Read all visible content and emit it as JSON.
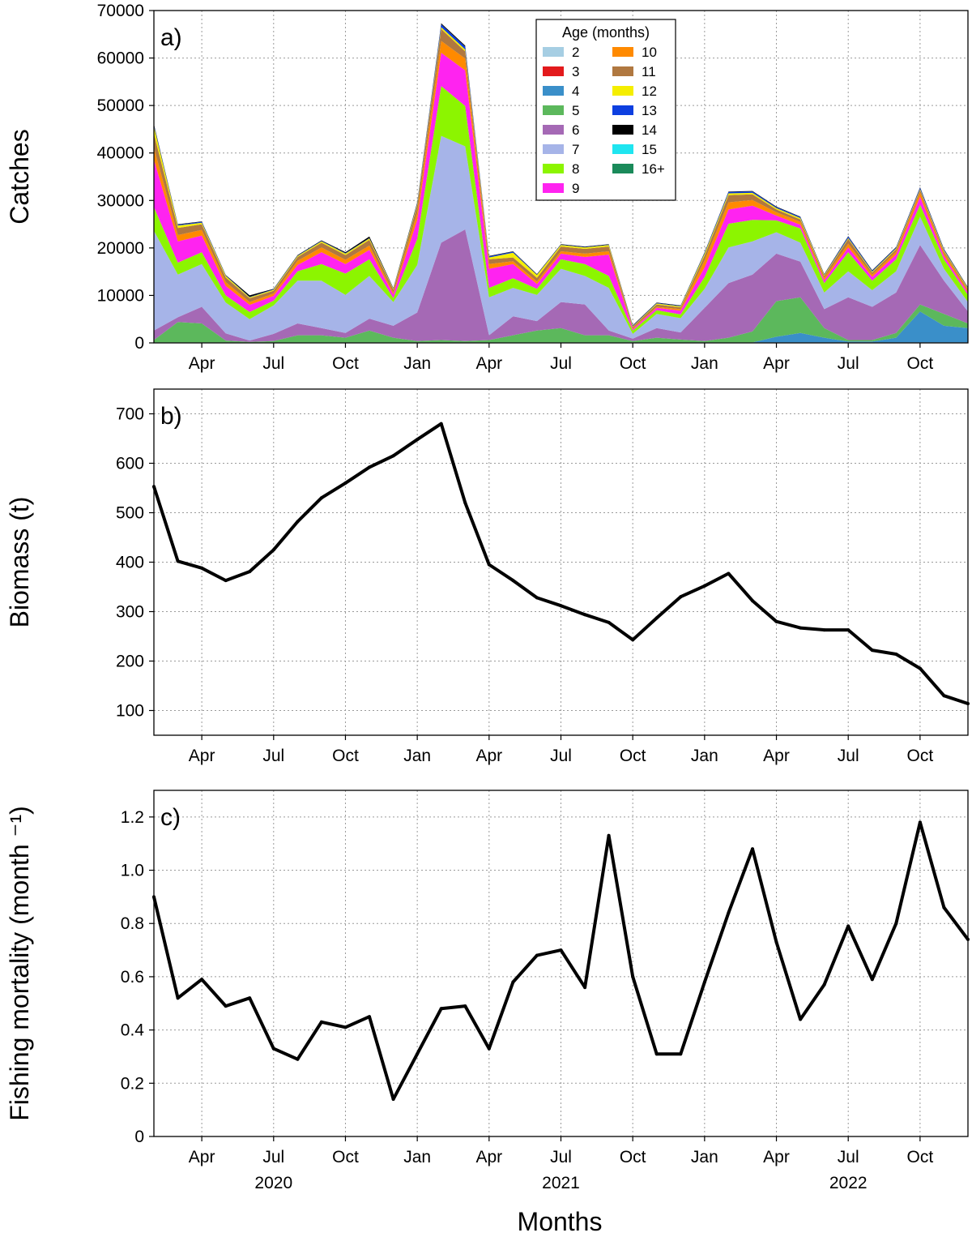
{
  "colors": {
    "ages": [
      "#a6cee3",
      "#e31a1c",
      "#3a8fc9",
      "#5cb85c",
      "#a569b5",
      "#a6b4e8",
      "#8cf500",
      "#ff23f0",
      "#ff8a00",
      "#b07840",
      "#f5ee00",
      "#0d3fe0",
      "#000000",
      "#1fe5f0",
      "#1a8a5a"
    ],
    "line": "#000000"
  },
  "x_labels": {
    "tick_labels": [
      "Apr",
      "Jul",
      "Oct",
      "Jan",
      "Apr",
      "Jul",
      "Oct",
      "Jan",
      "Apr",
      "Jul",
      "Oct"
    ],
    "years": [
      "2020",
      "2021",
      "2022"
    ],
    "xlabel": "Months"
  },
  "chart_data": [
    {
      "type": "area",
      "panel_label": "a)",
      "title": "",
      "xlabel": "",
      "ylabel": "Catches",
      "ylim": [
        0,
        70000
      ],
      "yticks": [
        "0",
        "10000",
        "20000",
        "30000",
        "40000",
        "50000",
        "60000",
        "70000"
      ],
      "legend_title": "Age (months)",
      "legend_position": "top-center",
      "x": [
        "2020-02",
        "2020-03",
        "2020-04",
        "2020-05",
        "2020-06",
        "2020-07",
        "2020-08",
        "2020-09",
        "2020-10",
        "2020-11",
        "2020-12",
        "2021-01",
        "2021-02",
        "2021-03",
        "2021-04",
        "2021-05",
        "2021-06",
        "2021-07",
        "2021-08",
        "2021-09",
        "2021-10",
        "2021-11",
        "2021-12",
        "2022-01",
        "2022-02",
        "2022-03",
        "2022-04",
        "2022-05",
        "2022-06",
        "2022-07",
        "2022-08",
        "2022-09",
        "2022-10",
        "2022-11",
        "2022-12"
      ],
      "stacked": true,
      "series": [
        {
          "name": "2",
          "values": [
            100,
            100,
            100,
            100,
            100,
            100,
            100,
            100,
            100,
            100,
            100,
            100,
            100,
            100,
            100,
            100,
            100,
            100,
            100,
            100,
            100,
            100,
            100,
            100,
            100,
            100,
            100,
            100,
            100,
            100,
            100,
            100,
            100,
            100,
            100
          ]
        },
        {
          "name": "3",
          "values": [
            0,
            0,
            0,
            0,
            0,
            0,
            0,
            0,
            0,
            0,
            0,
            0,
            0,
            0,
            0,
            0,
            0,
            0,
            0,
            0,
            0,
            0,
            0,
            0,
            0,
            0,
            0,
            0,
            0,
            0,
            0,
            0,
            0,
            0,
            0
          ]
        },
        {
          "name": "4",
          "values": [
            0,
            0,
            0,
            0,
            0,
            0,
            0,
            0,
            0,
            0,
            0,
            0,
            0,
            0,
            0,
            0,
            0,
            0,
            0,
            0,
            0,
            0,
            0,
            0,
            0,
            0,
            1200,
            2000,
            1000,
            200,
            200,
            1000,
            6500,
            3500,
            3000
          ]
        },
        {
          "name": "5",
          "values": [
            500,
            4300,
            4000,
            400,
            100,
            300,
            1500,
            1500,
            1000,
            2500,
            1000,
            300,
            500,
            300,
            500,
            1500,
            2500,
            3000,
            1500,
            1500,
            300,
            1000,
            600,
            300,
            1000,
            2300,
            7500,
            7500,
            2000,
            300,
            300,
            1000,
            1500,
            2500,
            1000
          ]
        },
        {
          "name": "6",
          "values": [
            2000,
            1000,
            3500,
            1500,
            300,
            1500,
            2500,
            1500,
            1000,
            2500,
            2500,
            6000,
            20500,
            23500,
            1000,
            4000,
            2000,
            5500,
            6500,
            1000,
            500,
            2000,
            1500,
            7000,
            11500,
            12000,
            10000,
            7500,
            4000,
            9000,
            7000,
            8500,
            12500,
            7000,
            2500
          ]
        },
        {
          "name": "7",
          "values": [
            21000,
            9000,
            9000,
            6500,
            4500,
            6000,
            9000,
            10000,
            8000,
            9000,
            5000,
            10000,
            22500,
            17500,
            8000,
            6000,
            5500,
            7000,
            6000,
            9000,
            1000,
            3000,
            3000,
            4000,
            7500,
            7000,
            4500,
            4000,
            3500,
            5500,
            3500,
            4500,
            6000,
            2500,
            2000
          ]
        },
        {
          "name": "8",
          "values": [
            5000,
            2500,
            2500,
            1500,
            1500,
            1000,
            2000,
            3500,
            4500,
            3500,
            800,
            5500,
            10500,
            8500,
            2000,
            2000,
            1300,
            2000,
            2500,
            2500,
            700,
            800,
            800,
            2500,
            5000,
            4500,
            2500,
            3000,
            2000,
            4000,
            2000,
            2500,
            2500,
            2000,
            1500
          ]
        },
        {
          "name": "9",
          "values": [
            10000,
            4500,
            3500,
            2000,
            1500,
            1000,
            1300,
            2500,
            2000,
            2000,
            800,
            4000,
            7000,
            7500,
            4000,
            3000,
            1000,
            1200,
            1500,
            4500,
            300,
            500,
            800,
            2000,
            3000,
            3000,
            1000,
            800,
            600,
            1000,
            800,
            1000,
            1700,
            700,
            500
          ]
        },
        {
          "name": "10",
          "values": [
            2500,
            1300,
            1200,
            800,
            600,
            500,
            900,
            1000,
            900,
            900,
            400,
            1500,
            2500,
            2500,
            1000,
            600,
            500,
            500,
            700,
            700,
            200,
            200,
            300,
            1500,
            1500,
            1200,
            700,
            600,
            500,
            800,
            500,
            600,
            900,
            600,
            400
          ]
        },
        {
          "name": "11",
          "values": [
            3000,
            1500,
            1200,
            1000,
            800,
            600,
            800,
            1000,
            1000,
            1200,
            600,
            1500,
            2500,
            1500,
            1000,
            800,
            800,
            1000,
            1000,
            1000,
            300,
            500,
            400,
            1000,
            1500,
            1200,
            600,
            500,
            400,
            1000,
            400,
            500,
            500,
            400,
            300
          ]
        },
        {
          "name": "12",
          "values": [
            1500,
            500,
            300,
            300,
            200,
            200,
            200,
            300,
            300,
            300,
            200,
            300,
            400,
            400,
            400,
            1000,
            600,
            300,
            300,
            300,
            100,
            200,
            200,
            400,
            400,
            300,
            300,
            300,
            200,
            200,
            200,
            200,
            200,
            200,
            200
          ]
        },
        {
          "name": "13",
          "values": [
            300,
            200,
            200,
            100,
            100,
            100,
            100,
            100,
            100,
            100,
            100,
            200,
            600,
            600,
            200,
            200,
            100,
            100,
            100,
            100,
            100,
            100,
            100,
            200,
            300,
            300,
            200,
            200,
            100,
            300,
            200,
            200,
            300,
            200,
            100
          ]
        },
        {
          "name": "14",
          "values": [
            200,
            100,
            100,
            100,
            300,
            100,
            100,
            100,
            200,
            300,
            100,
            200,
            200,
            200,
            100,
            100,
            100,
            100,
            100,
            100,
            100,
            100,
            100,
            100,
            100,
            100,
            100,
            100,
            100,
            100,
            100,
            100,
            100,
            100,
            100
          ]
        },
        {
          "name": "15",
          "values": [
            0,
            0,
            0,
            0,
            0,
            0,
            0,
            0,
            0,
            0,
            0,
            0,
            0,
            0,
            0,
            0,
            0,
            0,
            0,
            0,
            0,
            0,
            0,
            0,
            0,
            0,
            0,
            0,
            0,
            0,
            0,
            0,
            0,
            0,
            0
          ]
        },
        {
          "name": "16+",
          "values": [
            0,
            0,
            0,
            0,
            0,
            0,
            0,
            0,
            0,
            0,
            0,
            0,
            0,
            0,
            0,
            0,
            0,
            0,
            0,
            0,
            0,
            0,
            0,
            0,
            0,
            0,
            0,
            0,
            0,
            0,
            0,
            0,
            0,
            0,
            0
          ]
        }
      ]
    },
    {
      "type": "line",
      "panel_label": "b)",
      "title": "",
      "xlabel": "",
      "ylabel": "Biomass (t)",
      "ylim": [
        50,
        750
      ],
      "yticks": [
        "100",
        "200",
        "300",
        "400",
        "500",
        "600",
        "700"
      ],
      "x": [
        "2020-02",
        "2020-03",
        "2020-04",
        "2020-05",
        "2020-06",
        "2020-07",
        "2020-08",
        "2020-09",
        "2020-10",
        "2020-11",
        "2020-12",
        "2021-01",
        "2021-02",
        "2021-03",
        "2021-04",
        "2021-05",
        "2021-06",
        "2021-07",
        "2021-08",
        "2021-09",
        "2021-10",
        "2021-11",
        "2021-12",
        "2022-01",
        "2022-02",
        "2022-03",
        "2022-04",
        "2022-05",
        "2022-06",
        "2022-07",
        "2022-08",
        "2022-09",
        "2022-10",
        "2022-11",
        "2022-12"
      ],
      "values": [
        553,
        402,
        388,
        363,
        381,
        425,
        482,
        530,
        560,
        592,
        615,
        648,
        680,
        520,
        395,
        363,
        328,
        312,
        294,
        278,
        243,
        287,
        330,
        352,
        377,
        322,
        280,
        267,
        263,
        263,
        222,
        214,
        185,
        130,
        114
      ]
    },
    {
      "type": "line",
      "panel_label": "c)",
      "title": "",
      "xlabel": "Months",
      "ylabel": "Fishing mortality (month ⁻¹)",
      "ylim": [
        0,
        1.3
      ],
      "yticks": [
        "0",
        "0.2",
        "0.4",
        "0.6",
        "0.8",
        "1.0",
        "1.2"
      ],
      "x": [
        "2020-02",
        "2020-03",
        "2020-04",
        "2020-05",
        "2020-06",
        "2020-07",
        "2020-08",
        "2020-09",
        "2020-10",
        "2020-11",
        "2020-12",
        "2021-01",
        "2021-02",
        "2021-03",
        "2021-04",
        "2021-05",
        "2021-06",
        "2021-07",
        "2021-08",
        "2021-09",
        "2021-10",
        "2021-11",
        "2021-12",
        "2022-01",
        "2022-02",
        "2022-03",
        "2022-04",
        "2022-05",
        "2022-06",
        "2022-07",
        "2022-08",
        "2022-09",
        "2022-10",
        "2022-11",
        "2022-12"
      ],
      "values": [
        0.9,
        0.52,
        0.59,
        0.49,
        0.52,
        0.33,
        0.29,
        0.43,
        0.41,
        0.45,
        0.14,
        0.31,
        0.48,
        0.49,
        0.33,
        0.58,
        0.68,
        0.7,
        0.56,
        1.13,
        0.6,
        0.31,
        0.31,
        0.58,
        0.84,
        1.08,
        0.73,
        0.44,
        0.57,
        0.79,
        0.59,
        0.8,
        1.18,
        0.86,
        0.74
      ]
    }
  ]
}
